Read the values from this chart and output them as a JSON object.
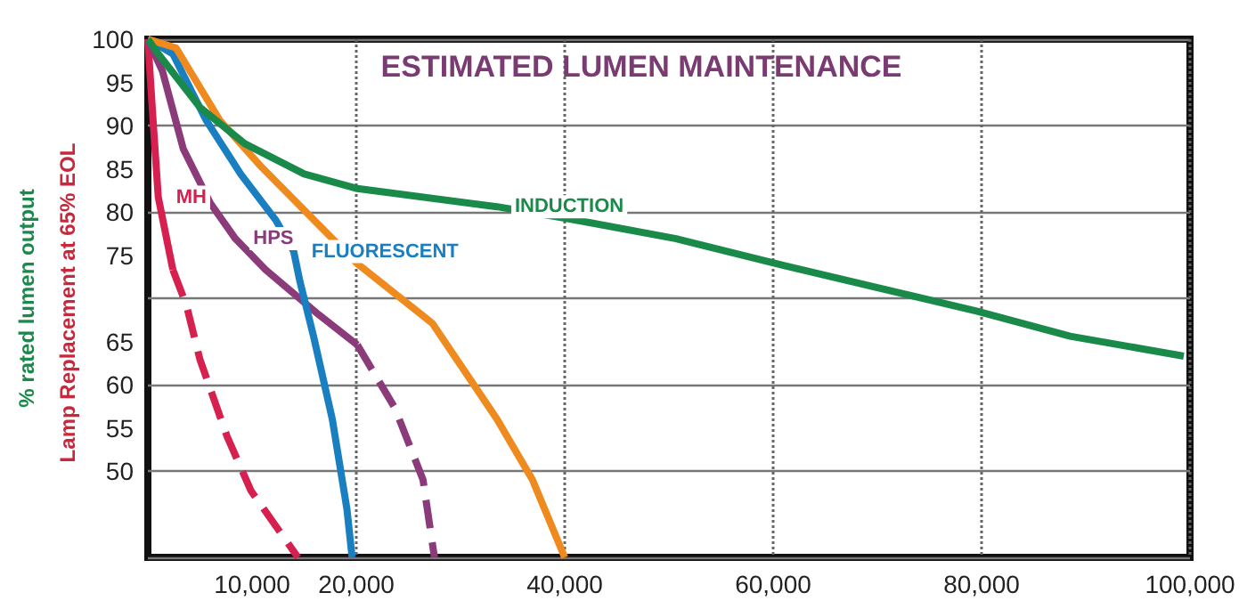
{
  "chart_data": {
    "type": "line",
    "title": "ESTIMATED LUMEN MAINTENANCE",
    "ylabel": "% rated lumen output",
    "annotations": [
      "Lamp Replacement at 65% EOL"
    ],
    "xlim": [
      0,
      100000
    ],
    "xticks": [
      {
        "value": 10000,
        "label": "10,000"
      },
      {
        "value": 20000,
        "label": "20,000"
      },
      {
        "value": 40000,
        "label": "40,000"
      },
      {
        "value": 60000,
        "label": "60,000"
      },
      {
        "value": 80000,
        "label": "80,000"
      },
      {
        "value": 100000,
        "label": "100,000"
      }
    ],
    "ylim": [
      40,
      100
    ],
    "yticks": [
      50,
      55,
      60,
      65,
      {
        "value": 70,
        "label": null
      },
      75,
      80,
      85,
      90,
      95,
      100
    ],
    "grid": true,
    "line_style": "solid",
    "marker": "none",
    "series": [
      {
        "name": "MH",
        "color": "#d6204f",
        "x": [
          0,
          500,
          1000,
          2400
        ],
        "values": [
          100,
          90.6,
          81.7,
          73.3
        ]
      },
      {
        "color": "#d6204f",
        "line_style": "dashed",
        "x": [
          2400,
          3700,
          5000,
          7600,
          9900,
          14400
        ],
        "values": [
          73.3,
          69.2,
          62.9,
          54,
          47.7,
          40
        ]
      },
      {
        "name": "HPS",
        "color": "#8b3a7a",
        "x": [
          0,
          1400,
          3400,
          6000,
          8400,
          11300,
          16400,
          20100
        ],
        "values": [
          100,
          96.3,
          87.3,
          81,
          76.9,
          73.3,
          68.1,
          64.6
        ]
      },
      {
        "color": "#8b3a7a",
        "line_style": "dashed",
        "x": [
          20100,
          23700,
          26400,
          27500
        ],
        "values": [
          64.6,
          57.3,
          49,
          40
        ]
      },
      {
        "name": "FLUORESCENT",
        "color": "#1a7fc1",
        "x": [
          0,
          2400,
          5600,
          8900,
          12300,
          14000,
          14600,
          15900,
          17700,
          19100,
          19600
        ],
        "values": [
          100,
          98.3,
          90.6,
          84.4,
          79,
          75.4,
          71.9,
          65.6,
          56,
          45.6,
          40
        ]
      },
      {
        "color": "#ee8a1e",
        "x": [
          0,
          2700,
          6900,
          10900,
          15000,
          20100,
          27300,
          33500,
          36900,
          40000
        ],
        "values": [
          100,
          99,
          90.6,
          85.2,
          80.2,
          74,
          67.1,
          56,
          49,
          40
        ]
      },
      {
        "name": "INDUCTION",
        "color": "#1a8a4a",
        "x": [
          0,
          1000,
          5000,
          9300,
          15000,
          20100,
          33500,
          40400,
          50700,
          61000,
          79600,
          88500,
          99400
        ],
        "values": [
          100,
          98.3,
          92.1,
          87.9,
          84.4,
          82.7,
          80.6,
          79.2,
          76.9,
          73.8,
          68.5,
          65.6,
          63.3
        ]
      }
    ]
  }
}
